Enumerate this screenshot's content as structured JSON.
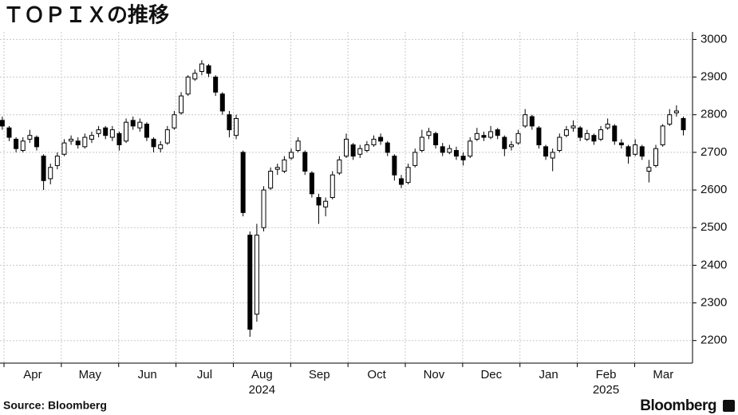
{
  "chart_data": {
    "type": "candlestick",
    "title": "ＴＯＰＩＸの推移",
    "x": [
      3.97,
      4.09,
      4.21,
      4.33,
      4.45,
      4.57,
      4.69,
      4.81,
      4.93,
      5.05,
      5.17,
      5.29,
      5.41,
      5.53,
      5.65,
      5.77,
      5.89,
      6.01,
      6.13,
      6.25,
      6.37,
      6.49,
      6.61,
      6.73,
      6.85,
      6.97,
      7.09,
      7.21,
      7.33,
      7.45,
      7.57,
      7.69,
      7.81,
      7.93,
      8.05,
      8.17,
      8.29,
      8.41,
      8.53,
      8.65,
      8.77,
      8.89,
      9.01,
      9.13,
      9.25,
      9.37,
      9.49,
      9.61,
      9.73,
      9.85,
      9.97,
      10.09,
      10.21,
      10.33,
      10.45,
      10.57,
      10.69,
      10.81,
      10.93,
      11.05,
      11.17,
      11.29,
      11.41,
      11.53,
      11.65,
      11.77,
      11.89,
      12.01,
      12.13,
      12.25,
      12.37,
      12.49,
      12.61,
      12.73,
      12.85,
      12.97,
      13.09,
      13.21,
      13.33,
      13.45,
      13.57,
      13.69,
      13.81,
      13.93,
      14.05,
      14.17,
      14.29,
      14.41,
      14.53,
      14.65,
      14.77,
      14.89,
      15.01,
      15.13,
      15.25,
      15.37,
      15.49,
      15.61,
      15.73,
      15.85
    ],
    "open": [
      2785,
      2765,
      2735,
      2705,
      2735,
      2740,
      2690,
      2630,
      2665,
      2695,
      2730,
      2730,
      2715,
      2735,
      2750,
      2765,
      2740,
      2750,
      2730,
      2785,
      2765,
      2775,
      2735,
      2710,
      2725,
      2765,
      2805,
      2855,
      2895,
      2915,
      2930,
      2900,
      2855,
      2800,
      2745,
      2700,
      2480,
      2270,
      2500,
      2605,
      2655,
      2650,
      2685,
      2705,
      2700,
      2645,
      2580,
      2555,
      2580,
      2645,
      2690,
      2720,
      2695,
      2705,
      2720,
      2740,
      2725,
      2690,
      2630,
      2620,
      2665,
      2705,
      2745,
      2750,
      2715,
      2700,
      2705,
      2690,
      2690,
      2735,
      2745,
      2740,
      2760,
      2740,
      2715,
      2725,
      2770,
      2795,
      2765,
      2715,
      2685,
      2705,
      2745,
      2765,
      2765,
      2735,
      2745,
      2735,
      2765,
      2770,
      2725,
      2715,
      2695,
      2715,
      2650,
      2665,
      2720,
      2775,
      2805,
      2790
    ],
    "high": [
      2795,
      2770,
      2740,
      2740,
      2760,
      2745,
      2695,
      2670,
      2700,
      2735,
      2745,
      2740,
      2750,
      2755,
      2770,
      2770,
      2770,
      2755,
      2790,
      2795,
      2790,
      2780,
      2740,
      2730,
      2770,
      2810,
      2860,
      2905,
      2920,
      2945,
      2935,
      2905,
      2860,
      2810,
      2800,
      2705,
      2490,
      2510,
      2610,
      2660,
      2670,
      2690,
      2710,
      2740,
      2705,
      2650,
      2590,
      2580,
      2650,
      2690,
      2750,
      2725,
      2720,
      2730,
      2745,
      2750,
      2730,
      2695,
      2640,
      2670,
      2710,
      2760,
      2765,
      2755,
      2725,
      2720,
      2715,
      2700,
      2740,
      2765,
      2755,
      2770,
      2765,
      2745,
      2730,
      2760,
      2815,
      2800,
      2770,
      2720,
      2710,
      2750,
      2770,
      2785,
      2770,
      2760,
      2750,
      2770,
      2790,
      2775,
      2735,
      2720,
      2735,
      2720,
      2680,
      2720,
      2775,
      2815,
      2825,
      2795
    ],
    "low": [
      2760,
      2730,
      2700,
      2700,
      2725,
      2705,
      2600,
      2615,
      2655,
      2690,
      2720,
      2710,
      2710,
      2725,
      2740,
      2735,
      2730,
      2705,
      2725,
      2760,
      2755,
      2730,
      2700,
      2700,
      2720,
      2760,
      2800,
      2850,
      2890,
      2905,
      2900,
      2850,
      2800,
      2740,
      2735,
      2530,
      2210,
      2250,
      2490,
      2600,
      2640,
      2645,
      2680,
      2700,
      2640,
      2580,
      2510,
      2530,
      2575,
      2640,
      2685,
      2680,
      2685,
      2700,
      2715,
      2720,
      2690,
      2625,
      2605,
      2615,
      2660,
      2700,
      2735,
      2710,
      2690,
      2695,
      2680,
      2665,
      2685,
      2730,
      2730,
      2735,
      2735,
      2690,
      2705,
      2720,
      2765,
      2760,
      2710,
      2680,
      2650,
      2700,
      2740,
      2755,
      2730,
      2730,
      2720,
      2730,
      2760,
      2720,
      2710,
      2670,
      2690,
      2680,
      2620,
      2660,
      2715,
      2770,
      2795,
      2745
    ],
    "close": [
      2770,
      2740,
      2710,
      2730,
      2745,
      2715,
      2625,
      2660,
      2690,
      2725,
      2735,
      2720,
      2740,
      2745,
      2760,
      2745,
      2760,
      2720,
      2780,
      2770,
      2780,
      2740,
      2715,
      2720,
      2760,
      2800,
      2850,
      2900,
      2910,
      2935,
      2910,
      2860,
      2810,
      2760,
      2790,
      2540,
      2230,
      2480,
      2600,
      2650,
      2660,
      2680,
      2700,
      2730,
      2650,
      2590,
      2560,
      2570,
      2640,
      2680,
      2735,
      2690,
      2710,
      2720,
      2735,
      2730,
      2700,
      2640,
      2615,
      2660,
      2700,
      2740,
      2755,
      2720,
      2700,
      2710,
      2690,
      2680,
      2730,
      2750,
      2740,
      2755,
      2745,
      2710,
      2720,
      2750,
      2800,
      2770,
      2720,
      2690,
      2700,
      2740,
      2760,
      2770,
      2740,
      2750,
      2730,
      2760,
      2775,
      2730,
      2720,
      2690,
      2720,
      2690,
      2660,
      2710,
      2770,
      2800,
      2810,
      2760
    ],
    "xlim": [
      3.93,
      16.01
    ],
    "xticks": [
      {
        "value": 4.5,
        "label": "Apr"
      },
      {
        "value": 5.5,
        "label": "May"
      },
      {
        "value": 6.5,
        "label": "Jun"
      },
      {
        "value": 7.5,
        "label": "Jul"
      },
      {
        "value": 8.5,
        "label": "Aug"
      },
      {
        "value": 9.5,
        "label": "Sep"
      },
      {
        "value": 10.5,
        "label": "Oct"
      },
      {
        "value": 11.5,
        "label": "Nov"
      },
      {
        "value": 12.5,
        "label": "Dec"
      },
      {
        "value": 13.5,
        "label": "Jan"
      },
      {
        "value": 14.5,
        "label": "Feb"
      },
      {
        "value": 15.5,
        "label": "Mar"
      }
    ],
    "year_labels": [
      {
        "value": 8.5,
        "label": "2024"
      },
      {
        "value": 14.5,
        "label": "2025"
      }
    ],
    "ylim": [
      2140,
      3020
    ],
    "yticks": [
      2200,
      2300,
      2400,
      2500,
      2600,
      2700,
      2800,
      2900,
      3000
    ],
    "grid": true,
    "color": "#000000",
    "source": "Source: Bloomberg",
    "brand": "Bloomberg"
  }
}
